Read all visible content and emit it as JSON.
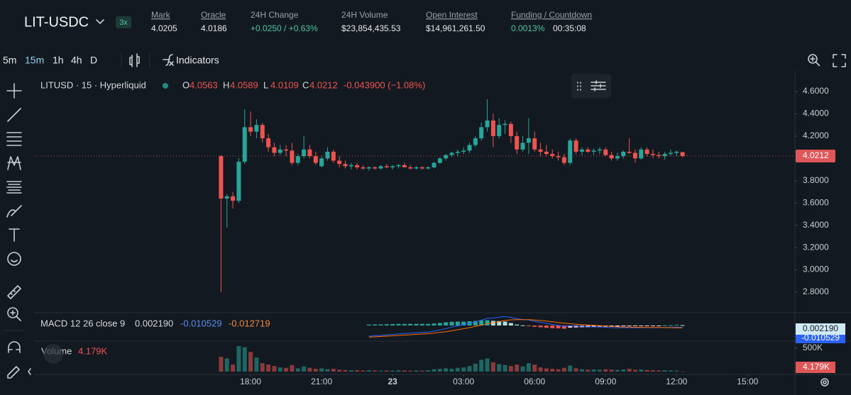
{
  "header": {
    "pair": "LIT-USDC",
    "leverage": "3x",
    "stats": [
      {
        "label": "Mark",
        "value": "4.0205"
      },
      {
        "label": "Oracle",
        "value": "4.0186"
      },
      {
        "label": "24H Change",
        "value": "+0.0250 / +0.63%"
      },
      {
        "label": "24H Volume",
        "value": "$23,854,435.53"
      },
      {
        "label": "Open Interest",
        "value": "$14,961,261.50"
      },
      {
        "label": "Funding / Countdown",
        "value": "0.0013%",
        "value2": "00:35:08"
      }
    ]
  },
  "toolbar": {
    "intervals": [
      "5m",
      "15m",
      "1h",
      "4h",
      "D"
    ],
    "active": 1,
    "indicators": "Indicators"
  },
  "chart_data": {
    "type": "candlestick",
    "title": "LITUSD · 15 · Hyperliquid",
    "legend": {
      "open_label": "O",
      "high_label": "H",
      "low_label": "L",
      "close_label": "C",
      "change": "-0.043900 (−1.08%)"
    },
    "up_color": "#26a69a",
    "down_color": "#ef5350",
    "x": [
      16.75,
      17,
      17.25,
      17.5,
      17.75,
      18,
      18.25,
      18.5,
      18.75,
      19,
      19.25,
      19.5,
      19.75,
      20,
      20.25,
      20.5,
      20.75,
      21,
      21.25,
      21.5,
      21.75,
      22,
      22.25,
      22.5,
      22.75,
      23,
      23.25,
      23.5,
      23.75,
      24,
      24.25,
      24.5,
      24.75,
      25,
      25.25,
      25.5,
      25.75,
      26,
      26.25,
      26.5,
      26.75,
      27,
      27.25,
      27.5,
      27.75,
      28,
      28.25,
      28.5,
      28.75,
      29,
      29.25,
      29.5,
      29.75,
      30,
      30.25,
      30.5,
      30.75,
      31,
      31.25,
      31.5,
      31.75,
      32,
      32.25,
      32.5,
      32.75,
      33,
      33.25,
      33.5,
      33.75,
      34,
      34.25,
      34.5,
      34.75,
      35,
      35.25,
      35.5,
      35.75,
      36,
      36.25
    ],
    "open": [
      4.02,
      3.64,
      3.66,
      3.62,
      3.97,
      4.28,
      4.24,
      4.3,
      4.18,
      4.1,
      4.05,
      4.08,
      4.07,
      3.96,
      4.02,
      4.08,
      4.02,
      3.93,
      4.0,
      4.06,
      3.98,
      3.95,
      3.93,
      3.94,
      3.92,
      3.91,
      3.92,
      3.91,
      3.93,
      3.92,
      3.93,
      3.94,
      3.92,
      3.91,
      3.92,
      3.91,
      3.92,
      3.96,
      4.0,
      4.03,
      4.05,
      4.06,
      4.07,
      4.12,
      4.18,
      4.28,
      4.34,
      4.2,
      4.3,
      4.31,
      4.2,
      4.08,
      4.14,
      4.18,
      4.08,
      4.06,
      4.04,
      4.02,
      4.01,
      3.96,
      4.16,
      4.06,
      4.08,
      4.06,
      4.07,
      4.08,
      4.03,
      4.0,
      4.02,
      4.06,
      4.05,
      4.0,
      4.08,
      4.04,
      4.03,
      4.02,
      4.04,
      4.05,
      4.0563
    ],
    "high": [
      4.03,
      3.68,
      3.7,
      4.0,
      4.44,
      4.42,
      4.35,
      4.32,
      4.22,
      4.14,
      4.12,
      4.12,
      4.14,
      4.04,
      4.2,
      4.12,
      4.06,
      4.02,
      4.1,
      4.08,
      4.02,
      3.98,
      3.96,
      3.96,
      3.94,
      3.93,
      3.93,
      3.94,
      3.95,
      3.94,
      3.95,
      3.96,
      3.94,
      3.93,
      3.93,
      3.93,
      3.97,
      4.01,
      4.04,
      4.06,
      4.08,
      4.1,
      4.14,
      4.2,
      4.32,
      4.53,
      4.4,
      4.36,
      4.34,
      4.33,
      4.24,
      4.2,
      4.36,
      4.24,
      4.14,
      4.12,
      4.08,
      4.06,
      4.04,
      4.18,
      4.18,
      4.1,
      4.1,
      4.09,
      4.1,
      4.1,
      4.06,
      4.05,
      4.07,
      4.18,
      4.08,
      4.1,
      4.1,
      4.08,
      4.06,
      4.06,
      4.08,
      4.07,
      4.0589
    ],
    "low": [
      2.8,
      3.38,
      3.55,
      3.6,
      3.95,
      4.2,
      4.18,
      4.14,
      4.06,
      4.02,
      4.03,
      4.02,
      3.94,
      3.94,
      4.0,
      4.0,
      3.94,
      3.92,
      3.98,
      3.96,
      3.92,
      3.91,
      3.9,
      3.9,
      3.9,
      3.89,
      3.9,
      3.9,
      3.91,
      3.9,
      3.91,
      3.92,
      3.9,
      3.9,
      3.9,
      3.9,
      3.91,
      3.95,
      3.98,
      4.01,
      4.02,
      4.04,
      4.05,
      4.1,
      4.16,
      4.24,
      4.1,
      4.18,
      4.22,
      4.14,
      4.04,
      4.06,
      4.04,
      4.06,
      4.02,
      4.02,
      4.0,
      3.98,
      3.94,
      3.94,
      4.04,
      4.03,
      4.05,
      4.03,
      4.04,
      4.02,
      3.98,
      3.98,
      4.0,
      4.04,
      3.96,
      3.99,
      4.02,
      4.0,
      4.0,
      3.99,
      4.02,
      4.02,
      4.0109
    ],
    "close": [
      3.64,
      3.66,
      3.62,
      3.97,
      4.28,
      4.24,
      4.3,
      4.18,
      4.1,
      4.05,
      4.08,
      4.07,
      3.96,
      4.02,
      4.08,
      4.02,
      3.96,
      4.0,
      4.06,
      3.98,
      3.95,
      3.93,
      3.94,
      3.92,
      3.91,
      3.92,
      3.91,
      3.93,
      3.92,
      3.93,
      3.94,
      3.92,
      3.91,
      3.92,
      3.91,
      3.92,
      3.96,
      4.0,
      4.03,
      4.05,
      4.06,
      4.07,
      4.12,
      4.18,
      4.28,
      4.34,
      4.2,
      4.3,
      4.31,
      4.2,
      4.08,
      4.14,
      4.18,
      4.08,
      4.06,
      4.04,
      4.02,
      4.01,
      3.96,
      4.16,
      4.06,
      4.08,
      4.06,
      4.07,
      4.08,
      4.03,
      4.0,
      4.02,
      4.06,
      4.05,
      4.0,
      4.08,
      4.04,
      4.03,
      4.02,
      4.04,
      4.05,
      4.06,
      4.0212
    ],
    "xlim": [
      8.85,
      41.0
    ],
    "xticks": [
      {
        "value": 18,
        "label": "18:00"
      },
      {
        "value": 21,
        "label": "21:00"
      },
      {
        "value": 24,
        "label": "23"
      },
      {
        "value": 27,
        "label": "03:00"
      },
      {
        "value": 30,
        "label": "06:00"
      },
      {
        "value": 33,
        "label": "09:00"
      },
      {
        "value": 36,
        "label": "12:00"
      },
      {
        "value": 39,
        "label": "15:00"
      }
    ],
    "ylim": [
      2.622,
      4.753
    ],
    "yticks": [
      {
        "value": 4.6,
        "label": "4.6000"
      },
      {
        "value": 4.4,
        "label": "4.4000"
      },
      {
        "value": 4.2,
        "label": "4.2000"
      },
      {
        "value": 3.8,
        "label": "3.8000"
      },
      {
        "value": 3.6,
        "label": "3.6000"
      },
      {
        "value": 3.4,
        "label": "3.4000"
      },
      {
        "value": 3.2,
        "label": "3.2000"
      },
      {
        "value": 3.0,
        "label": "3.0000"
      },
      {
        "value": 2.8,
        "label": "2.8000"
      }
    ],
    "macd": {
      "title": "MACD 12 26 close 9",
      "macd_color": "#2962ff",
      "signal_color": "#ff6d00",
      "last": {
        "histogram": "0.002190",
        "macd": "-0.010529",
        "signal": "-0.012719"
      },
      "ylim": [
        -0.08,
        0.06
      ],
      "histogram": [
        null,
        null,
        null,
        null,
        null,
        null,
        null,
        null,
        null,
        null,
        null,
        null,
        null,
        null,
        null,
        null,
        null,
        null,
        null,
        null,
        null,
        null,
        null,
        null,
        null,
        0.005,
        0.006,
        0.006,
        0.007,
        0.008,
        0.009,
        0.009,
        0.009,
        0.009,
        0.009,
        0.009,
        0.011,
        0.014,
        0.018,
        0.021,
        0.022,
        0.022,
        0.024,
        0.026,
        0.029,
        0.03,
        0.026,
        0.025,
        0.022,
        0.014,
        0.005,
        0.001,
        -0.002,
        -0.007,
        -0.01,
        -0.013,
        -0.015,
        -0.016,
        -0.018,
        -0.012,
        -0.011,
        -0.01,
        -0.01,
        -0.009,
        -0.007,
        -0.007,
        -0.007,
        -0.006,
        -0.004,
        -0.003,
        -0.003,
        -0.002,
        -0.001,
        -0.001,
        -0.001,
        0.001,
        0.001,
        0.003,
        0.00219
      ],
      "macd": [
        null,
        null,
        null,
        null,
        null,
        null,
        null,
        null,
        null,
        null,
        null,
        null,
        null,
        null,
        null,
        null,
        null,
        null,
        null,
        null,
        null,
        null,
        null,
        null,
        null,
        -0.06,
        -0.058,
        -0.056,
        -0.053,
        -0.05,
        -0.047,
        -0.045,
        -0.043,
        -0.041,
        -0.039,
        -0.037,
        -0.032,
        -0.025,
        -0.017,
        -0.009,
        -0.002,
        0.004,
        0.012,
        0.021,
        0.031,
        0.04,
        0.042,
        0.047,
        0.05,
        0.046,
        0.038,
        0.034,
        0.031,
        0.024,
        0.018,
        0.012,
        0.006,
        0.001,
        -0.005,
        -0.002,
        -0.004,
        -0.005,
        -0.007,
        -0.008,
        -0.008,
        -0.01,
        -0.012,
        -0.013,
        -0.012,
        -0.012,
        -0.013,
        -0.012,
        -0.012,
        -0.012,
        -0.012,
        -0.011,
        -0.011,
        -0.01,
        -0.010529
      ],
      "signal": [
        null,
        null,
        null,
        null,
        null,
        null,
        null,
        null,
        null,
        null,
        null,
        null,
        null,
        null,
        null,
        null,
        null,
        null,
        null,
        null,
        null,
        null,
        null,
        null,
        null,
        -0.065,
        -0.064,
        -0.062,
        -0.06,
        -0.058,
        -0.056,
        -0.054,
        -0.052,
        -0.05,
        -0.048,
        -0.046,
        -0.043,
        -0.039,
        -0.035,
        -0.03,
        -0.024,
        -0.018,
        -0.012,
        -0.005,
        0.002,
        0.01,
        0.016,
        0.022,
        0.028,
        0.032,
        0.033,
        0.033,
        0.033,
        0.031,
        0.028,
        0.025,
        0.021,
        0.017,
        0.013,
        0.01,
        0.007,
        0.005,
        0.003,
        0.001,
        -0.001,
        -0.003,
        -0.005,
        -0.007,
        -0.008,
        -0.009,
        -0.01,
        -0.01,
        -0.011,
        -0.011,
        -0.011,
        -0.012,
        -0.012,
        -0.013,
        -0.012719
      ]
    },
    "volume": {
      "title": "Volume",
      "last_label": "4.179K",
      "ylim": [
        0,
        606000
      ],
      "yticks": [
        {
          "value": 500000,
          "label": "500K"
        }
      ],
      "values": [
        318000,
        280000,
        150000,
        545000,
        520000,
        420000,
        300000,
        180000,
        150000,
        120000,
        90000,
        80000,
        140000,
        70000,
        110000,
        80000,
        60000,
        70000,
        50000,
        60000,
        40000,
        35000,
        30000,
        30000,
        25000,
        30000,
        25000,
        20000,
        25000,
        20000,
        30000,
        25000,
        20000,
        25000,
        20000,
        30000,
        50000,
        60000,
        70000,
        60000,
        80000,
        90000,
        120000,
        170000,
        250000,
        280000,
        200000,
        160000,
        140000,
        120000,
        150000,
        110000,
        180000,
        150000,
        90000,
        70000,
        60000,
        50000,
        80000,
        130000,
        70000,
        50000,
        40000,
        45000,
        40000,
        50000,
        40000,
        35000,
        45000,
        60000,
        40000,
        45000,
        35000,
        30000,
        25000,
        30000,
        25000,
        20000,
        4179
      ]
    }
  }
}
